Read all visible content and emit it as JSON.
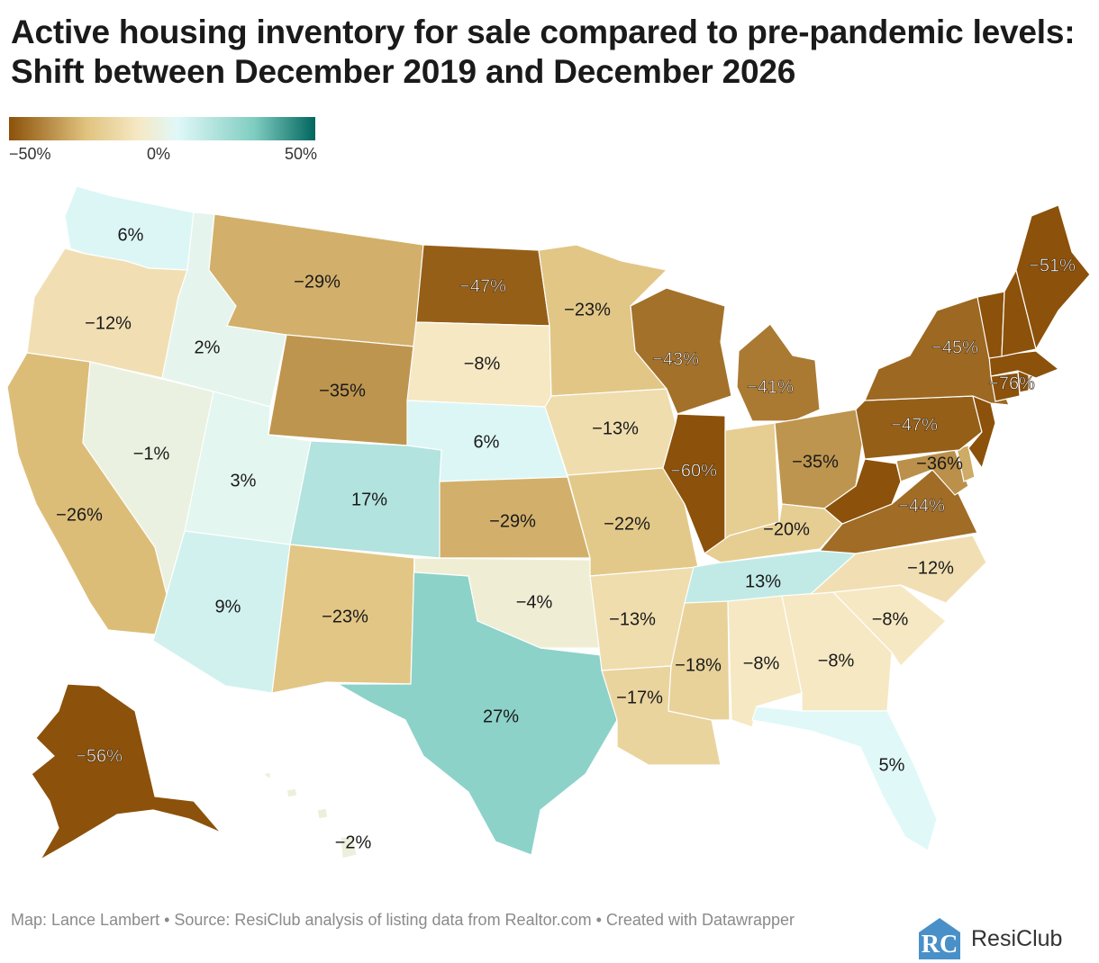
{
  "title": "Active housing inventory for sale compared to pre-pandemic levels: Shift between December 2019 and December 2026",
  "legend": {
    "ticks": [
      "−50%",
      "0%",
      "50%"
    ],
    "colors": [
      "#8c510a",
      "#dfc27d",
      "#f6e8c3",
      "#e0f8f8",
      "#80cdc1",
      "#01665e"
    ]
  },
  "states": [
    {
      "id": "WA",
      "label": "6%",
      "value": 6
    },
    {
      "id": "OR",
      "label": "−12%",
      "value": -12
    },
    {
      "id": "CA",
      "label": "−26%",
      "value": -26
    },
    {
      "id": "NV",
      "label": "−1%",
      "value": -1
    },
    {
      "id": "ID",
      "label": "2%",
      "value": 2
    },
    {
      "id": "MT",
      "label": "−29%",
      "value": -29
    },
    {
      "id": "WY",
      "label": "−35%",
      "value": -35
    },
    {
      "id": "UT",
      "label": "3%",
      "value": 3
    },
    {
      "id": "CO",
      "label": "17%",
      "value": 17
    },
    {
      "id": "AZ",
      "label": "9%",
      "value": 9
    },
    {
      "id": "NM",
      "label": "−23%",
      "value": -23
    },
    {
      "id": "ND",
      "label": "−47%",
      "value": -47
    },
    {
      "id": "SD",
      "label": "−8%",
      "value": -8
    },
    {
      "id": "NE",
      "label": "6%",
      "value": 6
    },
    {
      "id": "KS",
      "label": "−29%",
      "value": -29
    },
    {
      "id": "OK",
      "label": "−4%",
      "value": -4
    },
    {
      "id": "TX",
      "label": "27%",
      "value": 27
    },
    {
      "id": "MN",
      "label": "−23%",
      "value": -23
    },
    {
      "id": "IA",
      "label": "−13%",
      "value": -13
    },
    {
      "id": "MO",
      "label": "−22%",
      "value": -22
    },
    {
      "id": "AR",
      "label": "−13%",
      "value": -13
    },
    {
      "id": "LA",
      "label": "−17%",
      "value": -17
    },
    {
      "id": "WI",
      "label": "−43%",
      "value": -43
    },
    {
      "id": "IL",
      "label": "−60%",
      "value": -60
    },
    {
      "id": "MI",
      "label": "−41%",
      "value": -41
    },
    {
      "id": "IN",
      "label": "",
      "value": -20
    },
    {
      "id": "OH",
      "label": "−35%",
      "value": -35
    },
    {
      "id": "KY",
      "label": "−20%",
      "value": -20
    },
    {
      "id": "TN",
      "label": "13%",
      "value": 13
    },
    {
      "id": "MS",
      "label": "−18%",
      "value": -18
    },
    {
      "id": "AL",
      "label": "−8%",
      "value": -8
    },
    {
      "id": "GA",
      "label": "−8%",
      "value": -8
    },
    {
      "id": "FL",
      "label": "5%",
      "value": 5
    },
    {
      "id": "SC",
      "label": "−8%",
      "value": -8
    },
    {
      "id": "NC",
      "label": "−12%",
      "value": -12
    },
    {
      "id": "VA",
      "label": "−44%",
      "value": -44
    },
    {
      "id": "WV",
      "label": "",
      "value": -50
    },
    {
      "id": "MD",
      "label": "−36%",
      "value": -36
    },
    {
      "id": "DE",
      "label": "",
      "value": -30
    },
    {
      "id": "PA",
      "label": "−47%",
      "value": -47
    },
    {
      "id": "NJ",
      "label": "",
      "value": -55
    },
    {
      "id": "NY",
      "label": "−45%",
      "value": -45
    },
    {
      "id": "CT",
      "label": "",
      "value": -55
    },
    {
      "id": "RI",
      "label": "",
      "value": -55
    },
    {
      "id": "MA",
      "label": "−76%",
      "value": -76
    },
    {
      "id": "VT",
      "label": "",
      "value": -55
    },
    {
      "id": "NH",
      "label": "",
      "value": -55
    },
    {
      "id": "ME",
      "label": "−51%",
      "value": -51
    },
    {
      "id": "AK",
      "label": "−56%",
      "value": -56
    },
    {
      "id": "HI",
      "label": "−2%",
      "value": -2
    }
  ],
  "footer": "Map: Lance Lambert • Source: ResiClub analysis of listing data from Realtor.com • Created with Datawrapper",
  "logo": {
    "mark": "RC",
    "text": "ResiClub"
  }
}
